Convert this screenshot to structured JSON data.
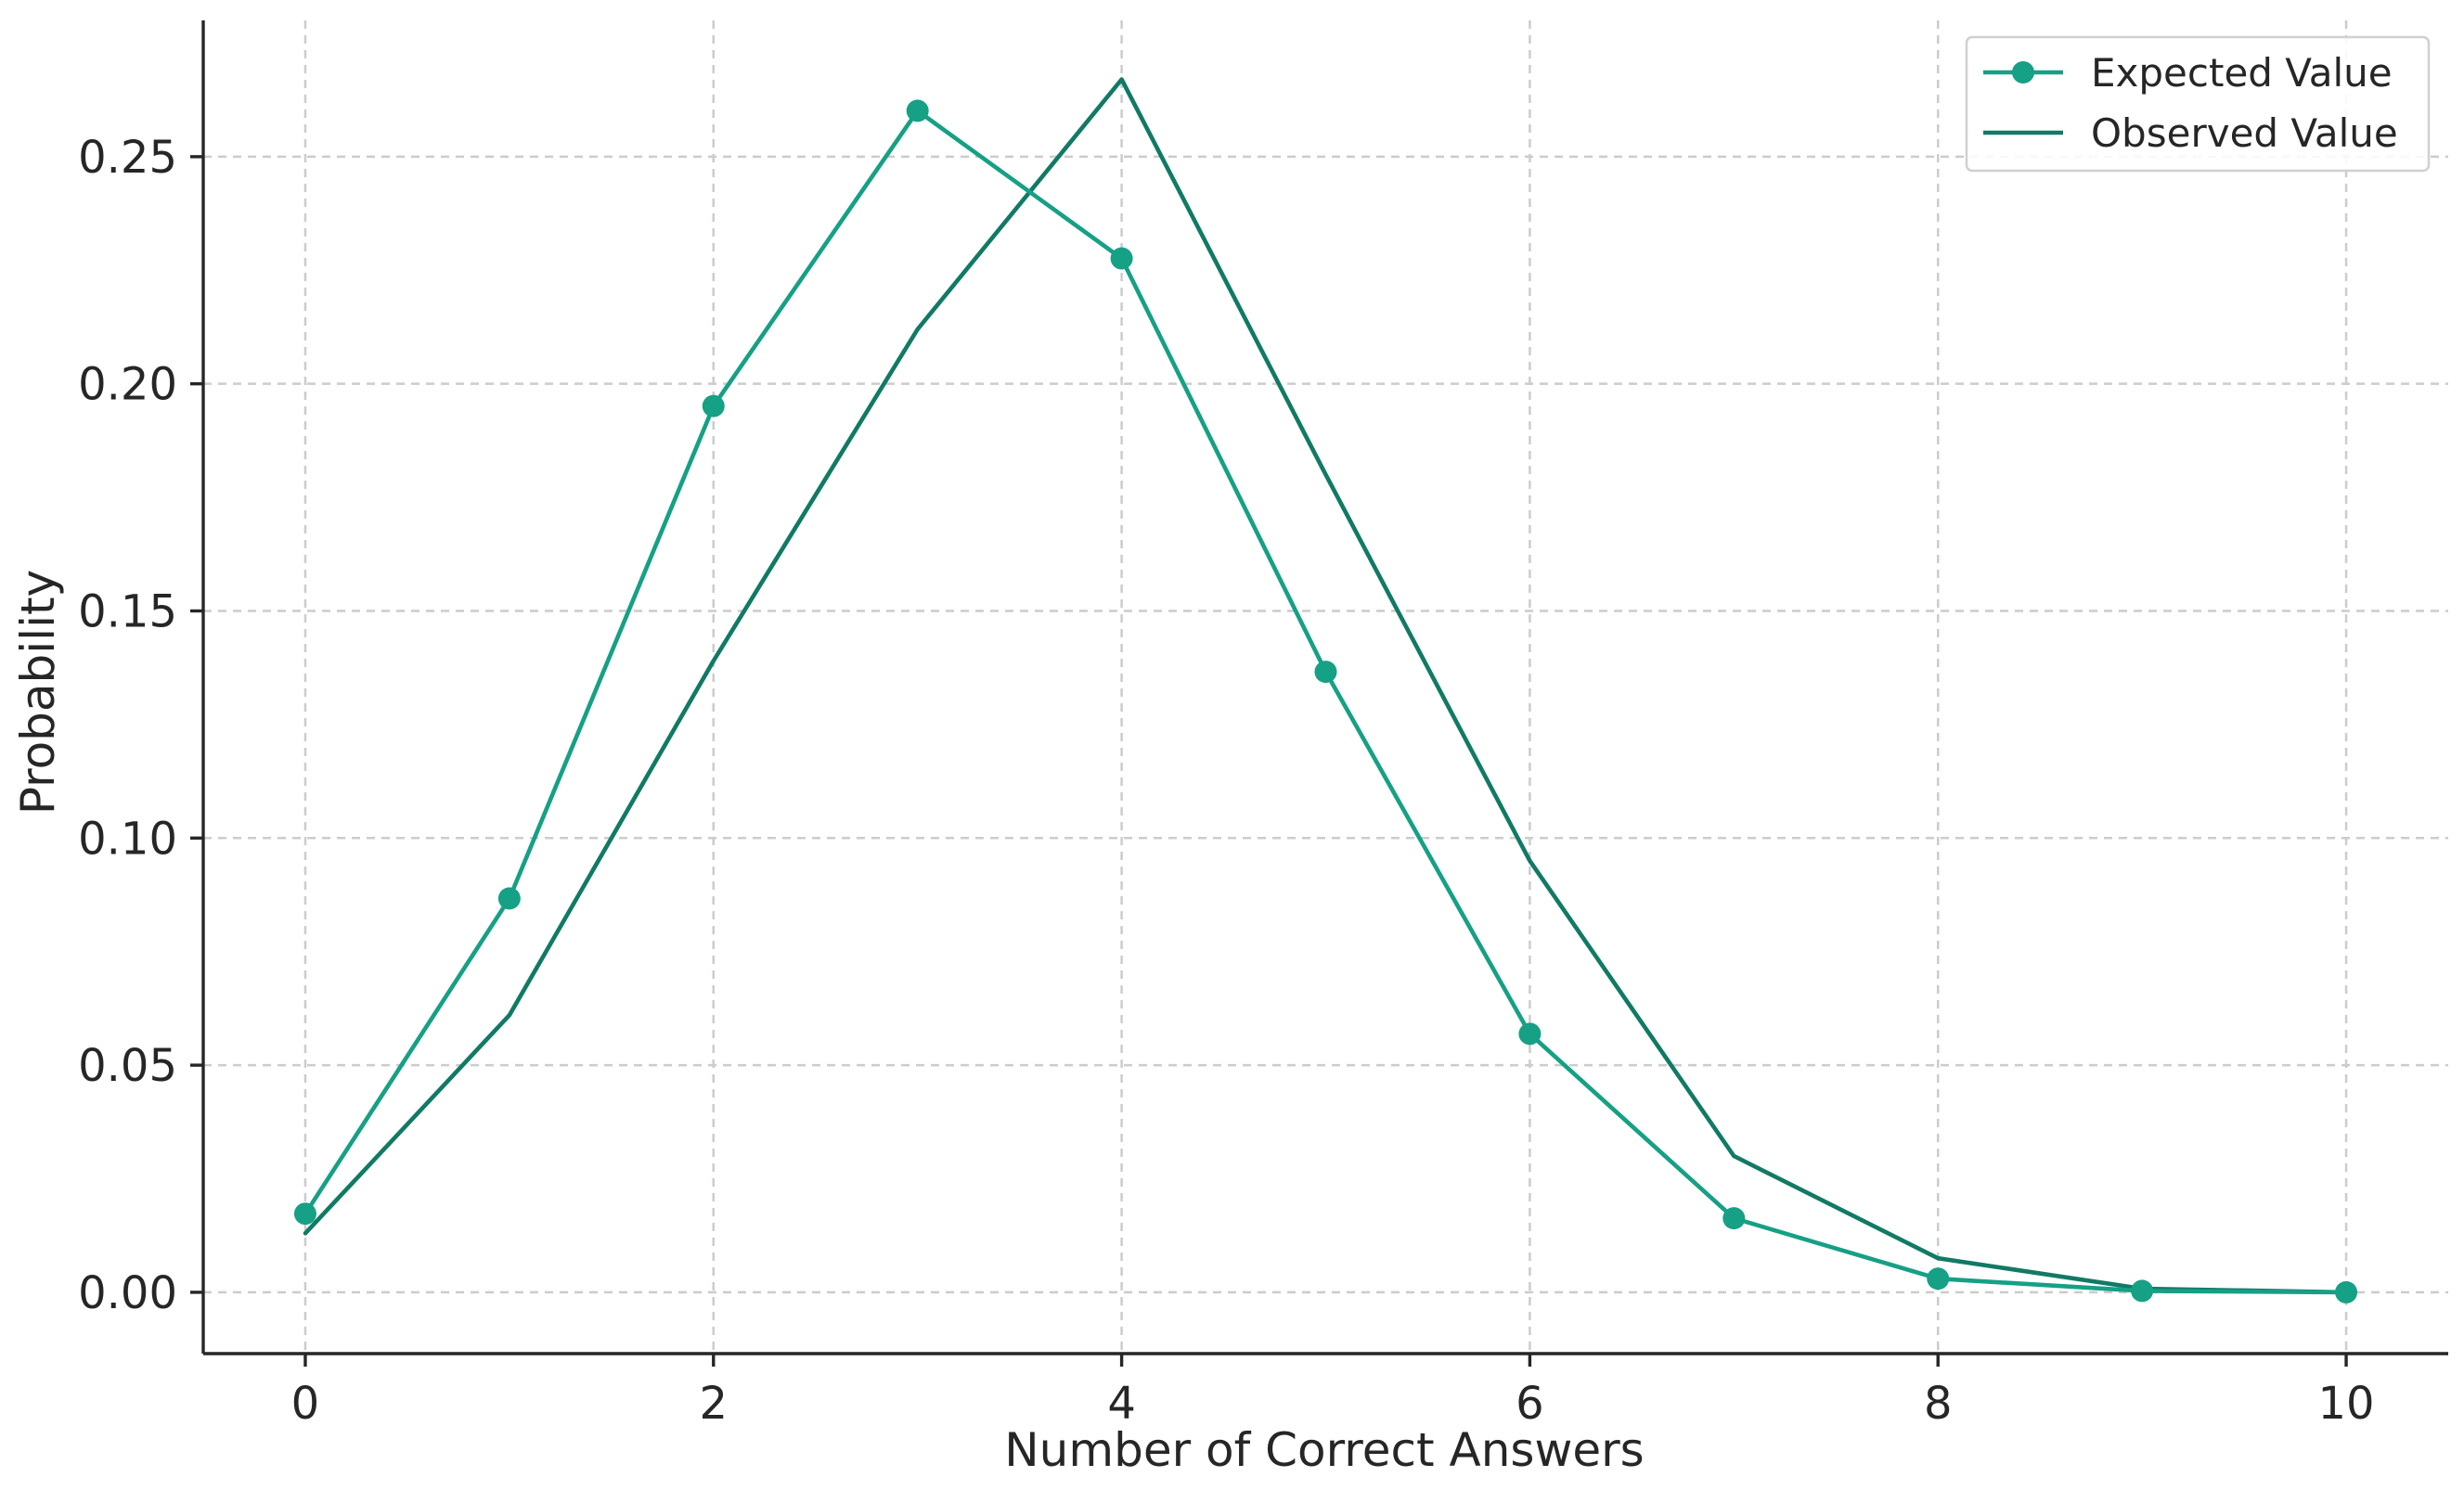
{
  "chart_data": {
    "type": "line",
    "xlabel": "Number of Correct Answers",
    "ylabel": "Probability",
    "xlim": [
      -0.5,
      10.5
    ],
    "ylim": [
      -0.0135,
      0.28
    ],
    "xticks": [
      0,
      2,
      4,
      6,
      8,
      10
    ],
    "xtick_labels": [
      "0",
      "2",
      "4",
      "6",
      "8",
      "10"
    ],
    "yticks": [
      0.0,
      0.05,
      0.1,
      0.15,
      0.2,
      0.25
    ],
    "ytick_labels": [
      "0.00",
      "0.05",
      "0.10",
      "0.15",
      "0.20",
      "0.25"
    ],
    "grid": true,
    "legend_position": "top-right",
    "x": [
      0,
      1,
      2,
      3,
      4,
      5,
      6,
      7,
      8,
      9,
      10
    ],
    "series": [
      {
        "name": "Expected Value",
        "color": "#16a085",
        "marker": "circle",
        "values": [
          0.0173,
          0.0867,
          0.1951,
          0.2601,
          0.2276,
          0.1366,
          0.0569,
          0.0163,
          0.003,
          0.0003,
          0.0
        ]
      },
      {
        "name": "Observed Value",
        "color": "#117a65",
        "marker": "none",
        "values": [
          0.013,
          0.061,
          0.139,
          0.212,
          0.267,
          0.18,
          0.095,
          0.03,
          0.0075,
          0.0008,
          0.0
        ]
      }
    ]
  }
}
